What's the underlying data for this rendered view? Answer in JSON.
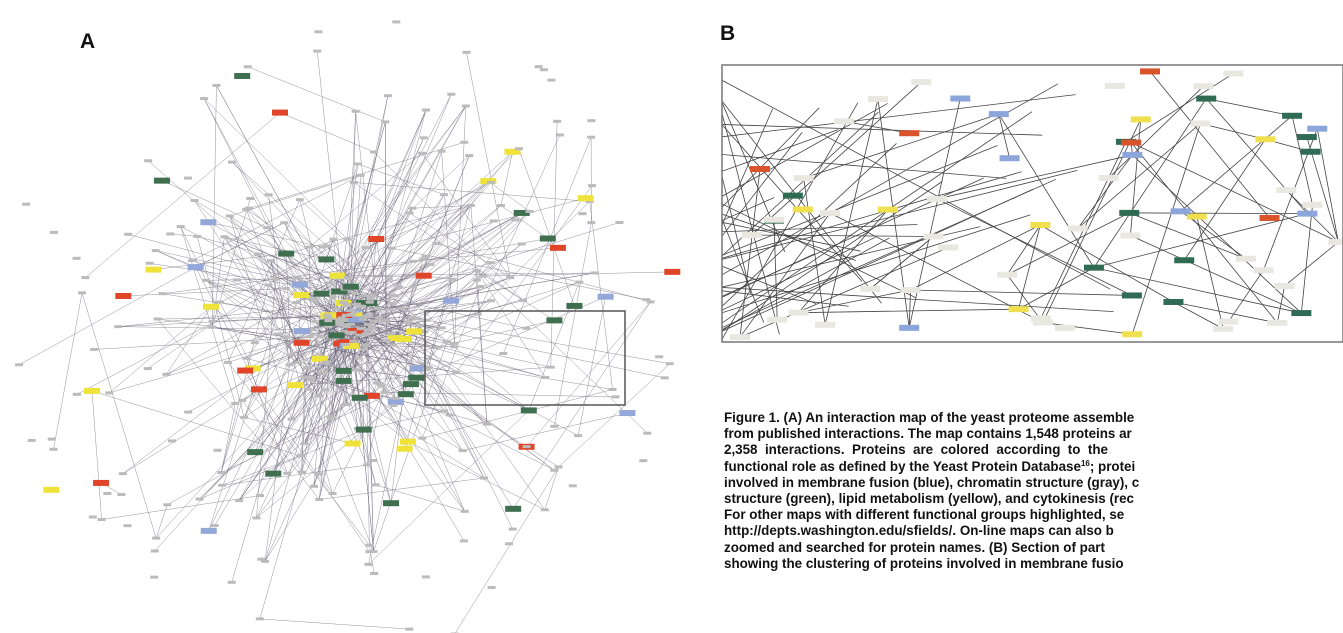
{
  "panels": {
    "a": {
      "label": "A"
    },
    "b": {
      "label": "B"
    }
  },
  "caption": {
    "lines": [
      "Figure 1. (A) An interaction map of the yeast proteome assemble",
      "from published interactions. The map contains 1,548 proteins ar",
      "2,358  interactions.  Proteins  are  colored  according  to  the",
      {
        "text": "functional role as defined by the Yeast Protein Database",
        "sup": "16",
        "rest": "; protei"
      },
      "involved in membrane fusion (blue), chromatin structure (gray), c",
      "structure (green), lipid metabolism (yellow), and cytokinesis (rec",
      "For other maps with different functional groups highlighted, se",
      "http://depts.washington.edu/sfields/. On-line maps can also b",
      "zoomed and searched for protein names. (B) Section of part",
      "showing the clustering of proteins involved in membrane fusio"
    ]
  }
}
